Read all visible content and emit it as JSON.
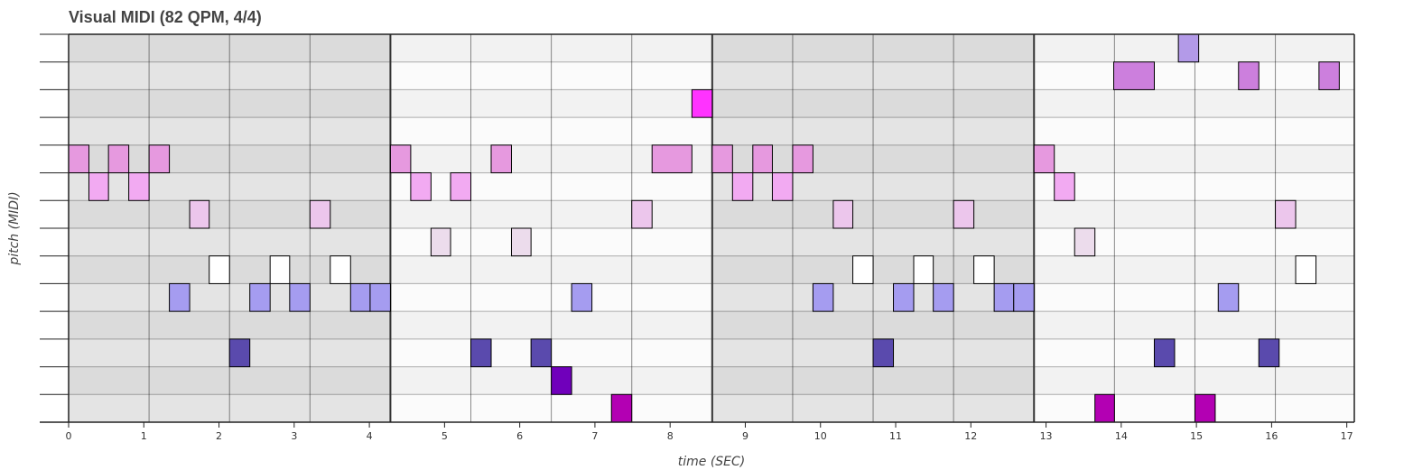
{
  "chart_data": {
    "type": "piano-roll",
    "title": "Visual MIDI (82 QPM, 4/4)",
    "xlabel": "time (SEC)",
    "ylabel": "pitch (MIDI)",
    "xlim": [
      0,
      17.1
    ],
    "x_ticks": [
      0,
      1,
      2,
      3,
      4,
      5,
      6,
      7,
      8,
      9,
      10,
      11,
      12,
      13,
      14,
      15,
      16,
      17
    ],
    "row_count": 14,
    "beat_times": [
      0,
      1.07,
      2.14,
      3.21,
      4.28,
      5.35,
      6.42,
      7.49,
      8.56,
      9.63,
      10.7,
      11.77,
      12.84,
      13.91,
      14.98,
      16.05,
      17.12
    ],
    "bar_times": [
      0,
      4.28,
      8.56,
      12.84
    ],
    "notes": [
      {
        "row": 13,
        "start": 14.76,
        "end": 15.03,
        "color": "#b39ae8"
      },
      {
        "row": 12,
        "start": 13.9,
        "end": 14.44,
        "color": "#cc7fdd"
      },
      {
        "row": 12,
        "start": 15.56,
        "end": 15.83,
        "color": "#cc7fdd"
      },
      {
        "row": 12,
        "start": 16.63,
        "end": 16.9,
        "color": "#cc7fdd"
      },
      {
        "row": 11,
        "start": 8.29,
        "end": 8.56,
        "color": "#ff33ff"
      },
      {
        "row": 9,
        "start": 0.0,
        "end": 0.27,
        "color": "#e699df"
      },
      {
        "row": 9,
        "start": 0.53,
        "end": 0.8,
        "color": "#e699df"
      },
      {
        "row": 9,
        "start": 1.07,
        "end": 1.34,
        "color": "#e699df"
      },
      {
        "row": 9,
        "start": 4.28,
        "end": 4.55,
        "color": "#e699df"
      },
      {
        "row": 9,
        "start": 5.62,
        "end": 5.89,
        "color": "#e699df"
      },
      {
        "row": 9,
        "start": 7.76,
        "end": 8.29,
        "color": "#e699df"
      },
      {
        "row": 9,
        "start": 8.56,
        "end": 8.83,
        "color": "#e699df"
      },
      {
        "row": 9,
        "start": 9.1,
        "end": 9.36,
        "color": "#e699df"
      },
      {
        "row": 9,
        "start": 9.63,
        "end": 9.9,
        "color": "#e699df"
      },
      {
        "row": 9,
        "start": 12.84,
        "end": 13.11,
        "color": "#e699df"
      },
      {
        "row": 8,
        "start": 0.27,
        "end": 0.53,
        "color": "#f2aaf2"
      },
      {
        "row": 8,
        "start": 0.8,
        "end": 1.07,
        "color": "#f2aaf2"
      },
      {
        "row": 8,
        "start": 4.55,
        "end": 4.82,
        "color": "#f2aaf2"
      },
      {
        "row": 8,
        "start": 5.08,
        "end": 5.35,
        "color": "#f2aaf2"
      },
      {
        "row": 8,
        "start": 8.83,
        "end": 9.1,
        "color": "#f2aaf2"
      },
      {
        "row": 8,
        "start": 9.36,
        "end": 9.63,
        "color": "#f2aaf2"
      },
      {
        "row": 8,
        "start": 13.11,
        "end": 13.38,
        "color": "#f2aaf2"
      },
      {
        "row": 7,
        "start": 1.61,
        "end": 1.87,
        "color": "#ecc6ec"
      },
      {
        "row": 7,
        "start": 3.21,
        "end": 3.48,
        "color": "#ecc6ec"
      },
      {
        "row": 7,
        "start": 7.49,
        "end": 7.76,
        "color": "#ecc6ec"
      },
      {
        "row": 7,
        "start": 10.17,
        "end": 10.43,
        "color": "#ecc6ec"
      },
      {
        "row": 7,
        "start": 11.77,
        "end": 12.04,
        "color": "#ecc6ec"
      },
      {
        "row": 7,
        "start": 16.05,
        "end": 16.32,
        "color": "#ecc6ec"
      },
      {
        "row": 6,
        "start": 4.82,
        "end": 5.08,
        "color": "#ecdcec"
      },
      {
        "row": 6,
        "start": 5.89,
        "end": 6.15,
        "color": "#ecdcec"
      },
      {
        "row": 6,
        "start": 13.38,
        "end": 13.65,
        "color": "#ecdcec"
      },
      {
        "row": 5,
        "start": 1.87,
        "end": 2.14,
        "color": "#ffffff"
      },
      {
        "row": 5,
        "start": 2.68,
        "end": 2.94,
        "color": "#ffffff"
      },
      {
        "row": 5,
        "start": 3.48,
        "end": 3.75,
        "color": "#ffffff"
      },
      {
        "row": 5,
        "start": 10.43,
        "end": 10.7,
        "color": "#ffffff"
      },
      {
        "row": 5,
        "start": 11.24,
        "end": 11.5,
        "color": "#ffffff"
      },
      {
        "row": 5,
        "start": 12.04,
        "end": 12.31,
        "color": "#ffffff"
      },
      {
        "row": 5,
        "start": 16.32,
        "end": 16.59,
        "color": "#ffffff"
      },
      {
        "row": 4,
        "start": 1.34,
        "end": 1.61,
        "color": "#a59cf0"
      },
      {
        "row": 4,
        "start": 2.41,
        "end": 2.68,
        "color": "#a59cf0"
      },
      {
        "row": 4,
        "start": 2.94,
        "end": 3.21,
        "color": "#a59cf0"
      },
      {
        "row": 4,
        "start": 3.75,
        "end": 4.01,
        "color": "#a59cf0"
      },
      {
        "row": 4,
        "start": 4.01,
        "end": 4.28,
        "color": "#a59cf0"
      },
      {
        "row": 4,
        "start": 6.69,
        "end": 6.96,
        "color": "#a59cf0"
      },
      {
        "row": 4,
        "start": 9.9,
        "end": 10.17,
        "color": "#a59cf0"
      },
      {
        "row": 4,
        "start": 10.97,
        "end": 11.24,
        "color": "#a59cf0"
      },
      {
        "row": 4,
        "start": 11.5,
        "end": 11.77,
        "color": "#a59cf0"
      },
      {
        "row": 4,
        "start": 12.31,
        "end": 12.57,
        "color": "#a59cf0"
      },
      {
        "row": 4,
        "start": 12.57,
        "end": 12.84,
        "color": "#a59cf0"
      },
      {
        "row": 4,
        "start": 15.29,
        "end": 15.56,
        "color": "#a59cf0"
      },
      {
        "row": 2,
        "start": 2.14,
        "end": 2.41,
        "color": "#5a4aad"
      },
      {
        "row": 2,
        "start": 5.35,
        "end": 5.62,
        "color": "#5a4aad"
      },
      {
        "row": 2,
        "start": 6.15,
        "end": 6.42,
        "color": "#5a4aad"
      },
      {
        "row": 2,
        "start": 10.7,
        "end": 10.97,
        "color": "#5a4aad"
      },
      {
        "row": 2,
        "start": 14.44,
        "end": 14.71,
        "color": "#5a4aad"
      },
      {
        "row": 2,
        "start": 15.83,
        "end": 16.1,
        "color": "#5a4aad"
      },
      {
        "row": 1,
        "start": 6.42,
        "end": 6.69,
        "color": "#7000bb"
      },
      {
        "row": 0,
        "start": 7.22,
        "end": 7.49,
        "color": "#b300b3"
      },
      {
        "row": 0,
        "start": 13.65,
        "end": 13.91,
        "color": "#b300b3"
      },
      {
        "row": 0,
        "start": 14.98,
        "end": 15.25,
        "color": "#b300b3"
      }
    ]
  }
}
